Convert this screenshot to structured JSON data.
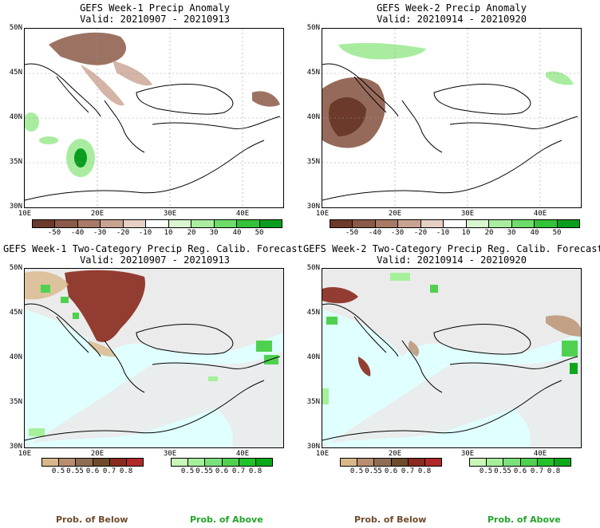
{
  "panels": [
    {
      "title": "GEFS Week-1 Precip Anomaly",
      "valid": "Valid: 20210907 - 20210913"
    },
    {
      "title": "GEFS Week-2 Precip Anomaly",
      "valid": "Valid: 20210914 - 20210920"
    },
    {
      "title": "GEFS Week-1 Two-Category Precip Reg. Calib. Forecast",
      "valid": "Valid: 20210907 - 20210913"
    },
    {
      "title": "GEFS Week-2 Two-Category Precip Reg. Calib. Forecast",
      "valid": "Valid: 20210914 - 20210920"
    }
  ],
  "lat_labels": [
    "50N",
    "45N",
    "40N",
    "35N",
    "30N"
  ],
  "lon_labels": [
    "10E",
    "20E",
    "30E",
    "40E"
  ],
  "anomaly_scale": {
    "labels": [
      "-50",
      "-40",
      "-30",
      "-20",
      "-10",
      "10",
      "20",
      "30",
      "40",
      "50"
    ],
    "colors": [
      "#6b3a2a",
      "#8b5a48",
      "#a87a66",
      "#c9a292",
      "#e6cfc4",
      "#ffffff",
      "#d8f5d0",
      "#a9eca0",
      "#6ddc6a",
      "#33c23a",
      "#0a9e1e"
    ]
  },
  "prob_scale": {
    "below_labels": [
      "0.5",
      "0.55",
      "0.6",
      "0.7",
      "0.8"
    ],
    "above_labels": [
      "0.5",
      "0.55",
      "0.6",
      "0.7",
      "0.8"
    ],
    "below_colors": [
      "#d8b88a",
      "#b98e6e",
      "#8f6d55",
      "#6e4b2a",
      "#8a2a1e",
      "#b02a2a"
    ],
    "above_colors": [
      "#c8f7b8",
      "#a6f09a",
      "#7ae27a",
      "#4fd14f",
      "#22c22a",
      "#0ca81a"
    ]
  },
  "footer": {
    "below": "Prob. of Below",
    "above": "Prob. of Above"
  },
  "colors": {
    "sea": "#e0ffff",
    "land_gray": "#ebebeb",
    "border": "#000000"
  }
}
